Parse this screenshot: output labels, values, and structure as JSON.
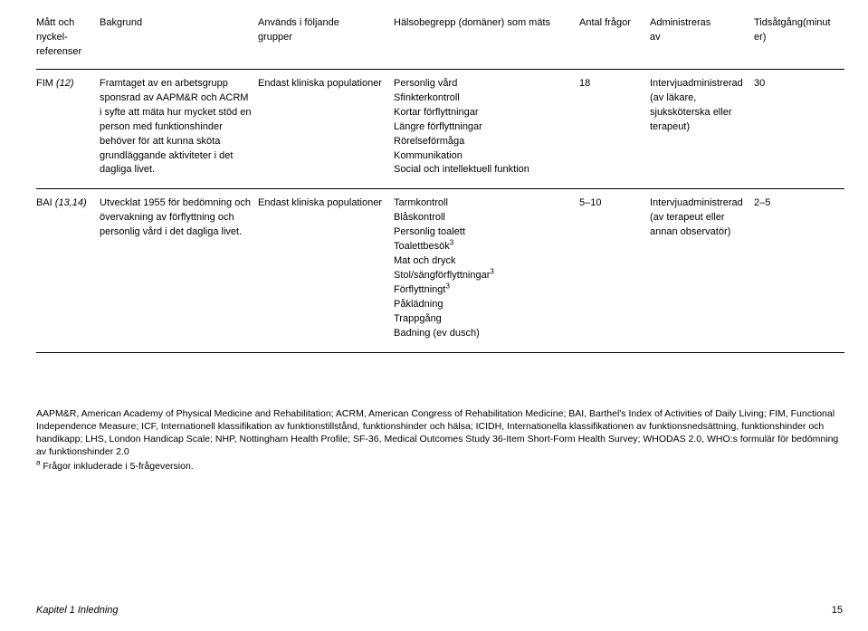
{
  "head": {
    "measure": "Mått och nyckel­referenser",
    "background": "Bakgrund",
    "groups": "Används i följande grupper",
    "domains": "Hälsobegrepp (domäner) som mäts",
    "nq": "Antal frågor",
    "admin": "Administreras av",
    "time": "Tidsåtgång(minuter)"
  },
  "rows": [
    {
      "measure_label": "FIM",
      "measure_ref": "(12)",
      "background": "Framtaget av en arbetsgrupp sponsrad av AAPM&R och ACRM i syfte att mäta hur mycket stöd en person med funktionshinder behöver för att kunna sköta grundlägg­ande aktiviteter i det dagliga livet.",
      "groups": "Endast kliniska popula­tioner",
      "domains": [
        "Personlig vård",
        "Sfinkterkontroll",
        "Kortar förflyttningar",
        "Längre förflyttningar",
        "Rörelseförmåga",
        "Kommunikation",
        "Social och intellektuell funktion"
      ],
      "nq": "18",
      "admin": "Intervju­administrerad (av läkare, sjuksköterska eller terapeut)",
      "time": "30"
    },
    {
      "measure_label": "BAI",
      "measure_ref": "(13,14)",
      "background": "Utvecklat 1955 för bedöm­ning och övervakning av förflyttning och personlig vård i det dagliga livet.",
      "groups": "Endast kliniska popula­tioner",
      "domains": [
        "Tarmkontroll",
        "Blåskontroll",
        "Personlig toalett",
        "Toalettbesök³",
        "Mat och dryck",
        "Stol/sängförflyttningar³",
        "Förflyttningt³",
        "Påklädning",
        "Trappgång",
        "Badning (ev dusch)"
      ],
      "nq": "5–10",
      "admin": "Intervju­administrerad (av terapeut eller annan observatör)",
      "time": "2–5"
    }
  ],
  "notes": {
    "p1": "AAPM&R, American Academy of Physical Medicine and Rehabilitation; ACRM, American Congress of Rehabilitation Medicine; BAI, Barthel's Index of Activities of Daily Living; FIM, Functional Independence Measure; ICF, Internationell klassifikation av funktionstillstånd, funktionshinder och hälsa; ICIDH, Internationella klassifikationen av funktionsnedsättning, funktionshinder och handikapp; LHS, London Handicap Scale; NHP, Nottingham Health Profile; SF-36, Medical Outcomes Study 36-Item Short-Form Health Survey; WHODAS 2.0, WHO:s formulär för bedömning av funktionshinder 2.0",
    "p2_sup": "a",
    "p2": " Frågor inkluderade i 5-frågeversion."
  },
  "footer": {
    "chapter": "Kapitel 1 Inledning",
    "page": "15"
  }
}
